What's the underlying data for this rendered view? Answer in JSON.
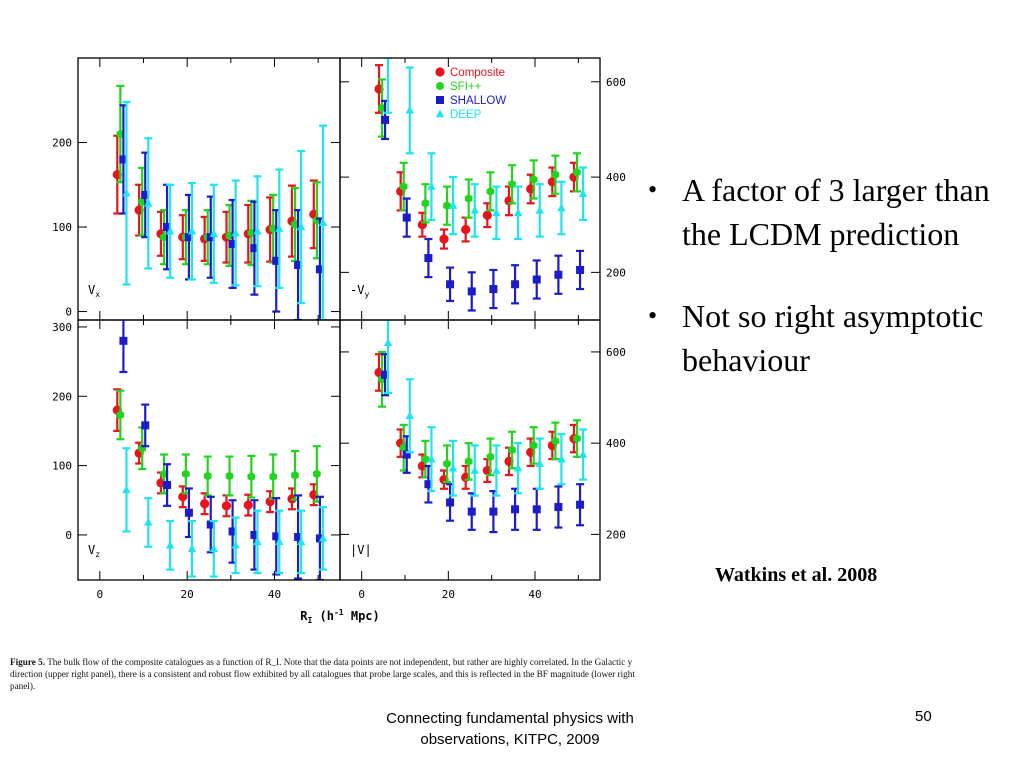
{
  "slide": {
    "bullets": [
      "A factor of 3 larger than the LCDM prediction",
      "Not so right asymptotic behaviour"
    ],
    "citation": "Watkins et al. 2008",
    "footer": "Connecting fundamental physics with observations, KITPC, 2009",
    "slide_number": "50",
    "figure_caption": {
      "label": "Figure 5.",
      "text": "The bulk flow of the composite catalogues as a function of R_I. Note that the data points are not independent, but rather are highly correlated. In the Galactic y direction (upper right panel), there is a consistent and robust flow exhibited by all catalogues that probe large scales, and this is reflected in the BF magnitude (lower right panel)."
    }
  },
  "colors": {
    "Composite": "#e8141c",
    "SFI++": "#22d41e",
    "SHALLOW": "#1c1cc8",
    "DEEP": "#1ee4f0"
  },
  "chart_data": [
    {
      "type": "scatter",
      "panel": "upper-left",
      "label": "V_x",
      "xlabel": "R_I (h^-1 Mpc)",
      "xlim": [
        -5,
        55
      ],
      "xticks": [
        0,
        20,
        40
      ],
      "ylim": [
        -10,
        300
      ],
      "yticks": [
        0,
        100,
        200
      ],
      "y_axis_side": "left",
      "series": [
        {
          "name": "Composite",
          "x": [
            5,
            10,
            15,
            20,
            25,
            30,
            35,
            40,
            45,
            50
          ],
          "y": [
            162,
            120,
            92,
            88,
            86,
            88,
            92,
            97,
            107,
            115
          ],
          "err": [
            46,
            30,
            26,
            26,
            26,
            30,
            34,
            38,
            42,
            40
          ]
        },
        {
          "name": "SFI++",
          "x": [
            5,
            10,
            15,
            20,
            25,
            30,
            35,
            40,
            45,
            50
          ],
          "y": [
            210,
            130,
            88,
            88,
            88,
            90,
            93,
            98,
            103,
            108
          ],
          "err": [
            57,
            40,
            32,
            32,
            32,
            36,
            38,
            40,
            43,
            45
          ]
        },
        {
          "name": "SHALLOW",
          "x": [
            5,
            10,
            15,
            20,
            25,
            30,
            35,
            40,
            45,
            50
          ],
          "y": [
            180,
            138,
            100,
            88,
            88,
            80,
            75,
            60,
            55,
            50
          ],
          "err": [
            64,
            50,
            50,
            50,
            48,
            52,
            55,
            60,
            65,
            60
          ]
        },
        {
          "name": "DEEP",
          "x": [
            5,
            10,
            15,
            20,
            25,
            30,
            35,
            40,
            45,
            50
          ],
          "y": [
            140,
            128,
            95,
            95,
            92,
            93,
            95,
            98,
            100,
            105
          ],
          "err": [
            108,
            77,
            55,
            57,
            58,
            62,
            65,
            70,
            90,
            115
          ]
        }
      ]
    },
    {
      "type": "scatter",
      "panel": "upper-right",
      "label": "-V_y",
      "legend": [
        "Composite",
        "SFI++",
        "SHALLOW",
        "DEEP"
      ],
      "legend_position": "top-right",
      "xlabel": "R_I (h^-1 Mpc)",
      "xlim": [
        -5,
        55
      ],
      "xticks": [
        0,
        20,
        40
      ],
      "ylim": [
        100,
        650
      ],
      "yticks": [
        200,
        400,
        600
      ],
      "y_axis_side": "right",
      "series": [
        {
          "name": "Composite",
          "x": [
            5,
            10,
            15,
            20,
            25,
            30,
            35,
            40,
            45,
            50
          ],
          "y": [
            585,
            370,
            300,
            270,
            290,
            320,
            350,
            375,
            390,
            400
          ],
          "err": [
            50,
            40,
            25,
            20,
            25,
            25,
            30,
            30,
            30,
            30
          ]
        },
        {
          "name": "SFI++",
          "x": [
            5,
            10,
            15,
            20,
            25,
            30,
            35,
            40,
            45,
            50
          ],
          "y": [
            545,
            380,
            345,
            340,
            355,
            370,
            385,
            395,
            405,
            410
          ],
          "err": [
            60,
            50,
            40,
            40,
            40,
            40,
            40,
            40,
            40,
            40
          ]
        },
        {
          "name": "SHALLOW",
          "x": [
            5,
            10,
            15,
            20,
            25,
            30,
            35,
            40,
            45,
            50
          ],
          "y": [
            520,
            315,
            230,
            175,
            160,
            165,
            175,
            185,
            195,
            205
          ],
          "err": [
            40,
            40,
            40,
            35,
            40,
            40,
            40,
            40,
            40,
            40
          ]
        },
        {
          "name": "DEEP",
          "x": [
            5,
            10,
            15,
            20,
            25,
            30,
            35,
            40,
            45,
            50
          ],
          "y": [
            655,
            540,
            380,
            340,
            330,
            325,
            325,
            330,
            335,
            365
          ],
          "err": [
            120,
            90,
            70,
            60,
            55,
            55,
            55,
            55,
            55,
            55
          ]
        }
      ]
    },
    {
      "type": "scatter",
      "panel": "lower-left",
      "label": "V_z",
      "xlabel": "R_I (h^-1 Mpc)",
      "xlim": [
        -5,
        55
      ],
      "xticks": [
        0,
        20,
        40
      ],
      "ylim": [
        -65,
        310
      ],
      "yticks": [
        0,
        100,
        200,
        300
      ],
      "y_axis_side": "left",
      "series": [
        {
          "name": "Composite",
          "x": [
            5,
            10,
            15,
            20,
            25,
            30,
            35,
            40,
            45,
            50
          ],
          "y": [
            180,
            118,
            75,
            55,
            45,
            42,
            43,
            48,
            52,
            58
          ],
          "err": [
            30,
            15,
            15,
            15,
            15,
            15,
            15,
            15,
            15,
            15
          ]
        },
        {
          "name": "SFI++",
          "x": [
            5,
            10,
            15,
            20,
            25,
            30,
            35,
            40,
            45,
            50
          ],
          "y": [
            173,
            125,
            88,
            88,
            85,
            85,
            84,
            84,
            86,
            88
          ],
          "err": [
            35,
            30,
            28,
            28,
            28,
            28,
            30,
            32,
            35,
            40
          ]
        },
        {
          "name": "SHALLOW",
          "x": [
            5,
            10,
            15,
            20,
            25,
            30,
            35,
            40,
            45,
            50
          ],
          "y": [
            280,
            158,
            72,
            32,
            15,
            5,
            0,
            -2,
            -3,
            -5
          ],
          "err": [
            45,
            30,
            30,
            35,
            40,
            45,
            50,
            55,
            60,
            60
          ]
        },
        {
          "name": "DEEP",
          "x": [
            5,
            10,
            15,
            20,
            25,
            30,
            35,
            40,
            45,
            50
          ],
          "y": [
            65,
            18,
            -15,
            -20,
            -20,
            -15,
            -10,
            -10,
            -10,
            -5
          ],
          "err": [
            60,
            35,
            35,
            40,
            40,
            40,
            45,
            45,
            45,
            45
          ]
        }
      ]
    },
    {
      "type": "scatter",
      "panel": "lower-right",
      "label": "|V|",
      "xlabel": "R_I (h^-1 Mpc)",
      "xlim": [
        -5,
        55
      ],
      "xticks": [
        0,
        20,
        40
      ],
      "ylim": [
        100,
        670
      ],
      "yticks": [
        200,
        400,
        600
      ],
      "y_axis_side": "right",
      "series": [
        {
          "name": "Composite",
          "x": [
            5,
            10,
            15,
            20,
            25,
            30,
            35,
            40,
            45,
            50
          ],
          "y": [
            555,
            400,
            350,
            320,
            325,
            340,
            360,
            380,
            395,
            410
          ],
          "err": [
            40,
            30,
            25,
            20,
            25,
            25,
            30,
            30,
            30,
            30
          ]
        },
        {
          "name": "SFI++",
          "x": [
            5,
            10,
            15,
            20,
            25,
            30,
            35,
            40,
            45,
            50
          ],
          "y": [
            540,
            390,
            365,
            355,
            360,
            370,
            385,
            395,
            405,
            410
          ],
          "err": [
            60,
            50,
            40,
            40,
            40,
            40,
            40,
            40,
            40,
            40
          ]
        },
        {
          "name": "SHALLOW",
          "x": [
            5,
            10,
            15,
            20,
            25,
            30,
            35,
            40,
            45,
            50
          ],
          "y": [
            550,
            375,
            310,
            270,
            250,
            250,
            255,
            255,
            260,
            265
          ],
          "err": [
            45,
            40,
            40,
            40,
            40,
            45,
            45,
            45,
            45,
            45
          ]
        },
        {
          "name": "DEEP",
          "x": [
            5,
            10,
            15,
            20,
            25,
            30,
            35,
            40,
            45,
            50
          ],
          "y": [
            620,
            460,
            365,
            345,
            340,
            340,
            345,
            355,
            365,
            375
          ],
          "err": [
            110,
            80,
            70,
            60,
            55,
            55,
            55,
            55,
            55,
            55
          ]
        }
      ]
    }
  ]
}
